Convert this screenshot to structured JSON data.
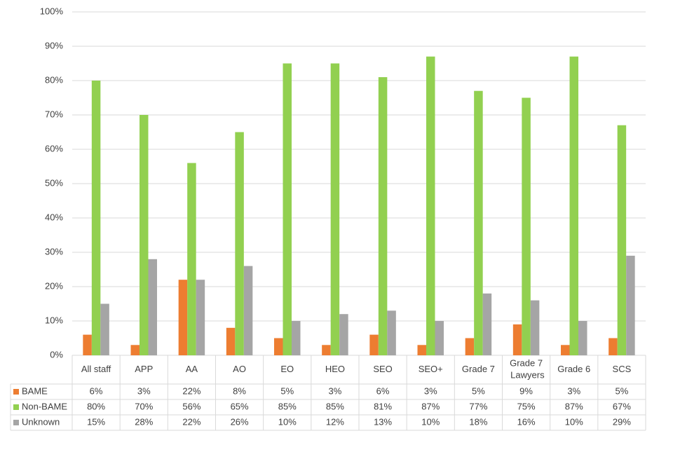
{
  "chart_data": {
    "type": "bar",
    "categories": [
      "All staff",
      "APP",
      "AA",
      "AO",
      "EO",
      "HEO",
      "SEO",
      "SEO+",
      "Grade 7",
      "Grade 7 Lawyers",
      "Grade 6",
      "SCS"
    ],
    "series": [
      {
        "name": "BAME",
        "color": "#ed7d31",
        "values": [
          6,
          3,
          22,
          8,
          5,
          3,
          6,
          3,
          5,
          9,
          3,
          5
        ],
        "value_labels": [
          "6%",
          "3%",
          "22%",
          "8%",
          "5%",
          "3%",
          "6%",
          "3%",
          "5%",
          "9%",
          "3%",
          "5%"
        ]
      },
      {
        "name": "Non-BAME",
        "color": "#92d050",
        "values": [
          80,
          70,
          56,
          65,
          85,
          85,
          81,
          87,
          77,
          75,
          87,
          67
        ],
        "value_labels": [
          "80%",
          "70%",
          "56%",
          "65%",
          "85%",
          "85%",
          "81%",
          "87%",
          "77%",
          "75%",
          "87%",
          "67%"
        ]
      },
      {
        "name": "Unknown",
        "color": "#a5a5a5",
        "values": [
          15,
          28,
          22,
          26,
          10,
          12,
          13,
          10,
          18,
          16,
          10,
          29
        ],
        "value_labels": [
          "15%",
          "28%",
          "22%",
          "26%",
          "10%",
          "12%",
          "13%",
          "10%",
          "18%",
          "16%",
          "10%",
          "29%"
        ]
      }
    ],
    "ylim": [
      0,
      100
    ],
    "yticks": [
      {
        "value": 0,
        "label": "0%"
      },
      {
        "value": 10,
        "label": "10%"
      },
      {
        "value": 20,
        "label": "20%"
      },
      {
        "value": 30,
        "label": "30%"
      },
      {
        "value": 40,
        "label": "40%"
      },
      {
        "value": 50,
        "label": "50%"
      },
      {
        "value": 60,
        "label": "60%"
      },
      {
        "value": 70,
        "label": "70%"
      },
      {
        "value": 80,
        "label": "80%"
      },
      {
        "value": 90,
        "label": "90%"
      },
      {
        "value": 100,
        "label": "100%"
      }
    ],
    "grid": true
  }
}
